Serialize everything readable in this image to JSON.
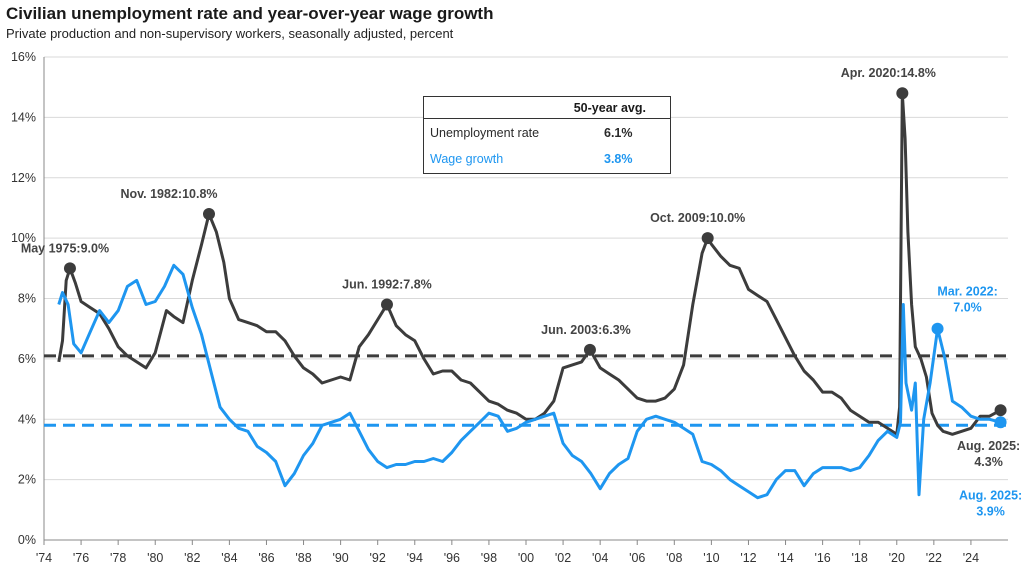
{
  "title": "Civilian unemployment rate and year-over-year wage growth",
  "subtitle": "Private production and non-supervisory workers, seasonally adjusted, percent",
  "legend": {
    "header": "50-year avg.",
    "rows": [
      {
        "label": "Unemployment rate",
        "value": "6.1%",
        "color": "#3c3c3c"
      },
      {
        "label": "Wage growth",
        "value": "3.8%",
        "color": "#1e96f0"
      }
    ]
  },
  "chart_data": {
    "type": "line",
    "title": "Civilian unemployment rate and year-over-year wage growth",
    "xlabel": "",
    "ylabel": "",
    "xlim": [
      1974,
      2026
    ],
    "ylim": [
      0,
      16
    ],
    "x_ticks": [
      "'74",
      "'76",
      "'78",
      "'80",
      "'82",
      "'84",
      "'86",
      "'88",
      "'90",
      "'92",
      "'94",
      "'96",
      "'98",
      "'00",
      "'02",
      "'04",
      "'06",
      "'08",
      "'10",
      "'12",
      "'14",
      "'16",
      "'18",
      "'20",
      "'22",
      "'24"
    ],
    "y_ticks": [
      "0%",
      "2%",
      "4%",
      "6%",
      "8%",
      "10%",
      "12%",
      "14%",
      "16%"
    ],
    "grid": "horizontal",
    "series": [
      {
        "name": "Unemployment rate",
        "color": "#3c3c3c",
        "avg": 6.1,
        "points": [
          [
            1974.8,
            5.9
          ],
          [
            1975.0,
            6.6
          ],
          [
            1975.2,
            8.6
          ],
          [
            1975.4,
            9.0
          ],
          [
            1975.7,
            8.5
          ],
          [
            1976.0,
            7.9
          ],
          [
            1976.5,
            7.7
          ],
          [
            1977.0,
            7.5
          ],
          [
            1977.5,
            7.0
          ],
          [
            1978.0,
            6.4
          ],
          [
            1978.5,
            6.1
          ],
          [
            1979.0,
            5.9
          ],
          [
            1979.5,
            5.7
          ],
          [
            1980.0,
            6.2
          ],
          [
            1980.3,
            6.9
          ],
          [
            1980.6,
            7.6
          ],
          [
            1981.0,
            7.4
          ],
          [
            1981.5,
            7.2
          ],
          [
            1982.0,
            8.6
          ],
          [
            1982.5,
            9.8
          ],
          [
            1982.9,
            10.8
          ],
          [
            1983.3,
            10.2
          ],
          [
            1983.7,
            9.2
          ],
          [
            1984.0,
            8.0
          ],
          [
            1984.5,
            7.3
          ],
          [
            1985.0,
            7.2
          ],
          [
            1985.5,
            7.1
          ],
          [
            1986.0,
            6.9
          ],
          [
            1986.5,
            6.9
          ],
          [
            1987.0,
            6.6
          ],
          [
            1987.5,
            6.1
          ],
          [
            1988.0,
            5.7
          ],
          [
            1988.5,
            5.5
          ],
          [
            1989.0,
            5.2
          ],
          [
            1989.5,
            5.3
          ],
          [
            1990.0,
            5.4
          ],
          [
            1990.5,
            5.3
          ],
          [
            1991.0,
            6.4
          ],
          [
            1991.5,
            6.8
          ],
          [
            1992.0,
            7.3
          ],
          [
            1992.5,
            7.8
          ],
          [
            1993.0,
            7.1
          ],
          [
            1993.5,
            6.8
          ],
          [
            1994.0,
            6.6
          ],
          [
            1994.5,
            6.0
          ],
          [
            1995.0,
            5.5
          ],
          [
            1995.5,
            5.6
          ],
          [
            1996.0,
            5.6
          ],
          [
            1996.5,
            5.3
          ],
          [
            1997.0,
            5.2
          ],
          [
            1997.5,
            4.9
          ],
          [
            1998.0,
            4.6
          ],
          [
            1998.5,
            4.5
          ],
          [
            1999.0,
            4.3
          ],
          [
            1999.5,
            4.2
          ],
          [
            2000.0,
            4.0
          ],
          [
            2000.5,
            4.0
          ],
          [
            2001.0,
            4.2
          ],
          [
            2001.5,
            4.6
          ],
          [
            2002.0,
            5.7
          ],
          [
            2002.5,
            5.8
          ],
          [
            2003.0,
            5.9
          ],
          [
            2003.45,
            6.3
          ],
          [
            2004.0,
            5.7
          ],
          [
            2004.5,
            5.5
          ],
          [
            2005.0,
            5.3
          ],
          [
            2005.5,
            5.0
          ],
          [
            2006.0,
            4.7
          ],
          [
            2006.5,
            4.6
          ],
          [
            2007.0,
            4.6
          ],
          [
            2007.5,
            4.7
          ],
          [
            2008.0,
            5.0
          ],
          [
            2008.5,
            5.8
          ],
          [
            2009.0,
            7.8
          ],
          [
            2009.5,
            9.5
          ],
          [
            2009.8,
            10.0
          ],
          [
            2010.0,
            9.8
          ],
          [
            2010.5,
            9.4
          ],
          [
            2011.0,
            9.1
          ],
          [
            2011.5,
            9.0
          ],
          [
            2012.0,
            8.3
          ],
          [
            2012.5,
            8.1
          ],
          [
            2013.0,
            7.9
          ],
          [
            2013.5,
            7.3
          ],
          [
            2014.0,
            6.7
          ],
          [
            2014.5,
            6.1
          ],
          [
            2015.0,
            5.6
          ],
          [
            2015.5,
            5.3
          ],
          [
            2016.0,
            4.9
          ],
          [
            2016.5,
            4.9
          ],
          [
            2017.0,
            4.7
          ],
          [
            2017.5,
            4.3
          ],
          [
            2018.0,
            4.1
          ],
          [
            2018.5,
            3.9
          ],
          [
            2019.0,
            3.9
          ],
          [
            2019.5,
            3.7
          ],
          [
            2020.0,
            3.5
          ],
          [
            2020.15,
            4.4
          ],
          [
            2020.3,
            14.8
          ],
          [
            2020.45,
            13.3
          ],
          [
            2020.6,
            10.2
          ],
          [
            2020.8,
            7.8
          ],
          [
            2021.0,
            6.4
          ],
          [
            2021.3,
            6.0
          ],
          [
            2021.6,
            5.4
          ],
          [
            2021.9,
            4.2
          ],
          [
            2022.2,
            3.8
          ],
          [
            2022.5,
            3.6
          ],
          [
            2023.0,
            3.5
          ],
          [
            2023.5,
            3.6
          ],
          [
            2024.0,
            3.7
          ],
          [
            2024.5,
            4.1
          ],
          [
            2025.0,
            4.1
          ],
          [
            2025.6,
            4.3
          ]
        ]
      },
      {
        "name": "Wage growth",
        "color": "#1e96f0",
        "avg": 3.8,
        "points": [
          [
            1974.8,
            7.8
          ],
          [
            1975.0,
            8.2
          ],
          [
            1975.3,
            7.8
          ],
          [
            1975.6,
            6.5
          ],
          [
            1976.0,
            6.2
          ],
          [
            1976.5,
            6.9
          ],
          [
            1977.0,
            7.6
          ],
          [
            1977.5,
            7.2
          ],
          [
            1978.0,
            7.6
          ],
          [
            1978.5,
            8.4
          ],
          [
            1979.0,
            8.6
          ],
          [
            1979.5,
            7.8
          ],
          [
            1980.0,
            7.9
          ],
          [
            1980.5,
            8.4
          ],
          [
            1981.0,
            9.1
          ],
          [
            1981.5,
            8.8
          ],
          [
            1982.0,
            7.7
          ],
          [
            1982.5,
            6.8
          ],
          [
            1983.0,
            5.6
          ],
          [
            1983.5,
            4.4
          ],
          [
            1984.0,
            4.0
          ],
          [
            1984.5,
            3.7
          ],
          [
            1985.0,
            3.6
          ],
          [
            1985.5,
            3.1
          ],
          [
            1986.0,
            2.9
          ],
          [
            1986.5,
            2.6
          ],
          [
            1987.0,
            1.8
          ],
          [
            1987.5,
            2.2
          ],
          [
            1988.0,
            2.8
          ],
          [
            1988.5,
            3.2
          ],
          [
            1989.0,
            3.8
          ],
          [
            1989.5,
            3.9
          ],
          [
            1990.0,
            4.0
          ],
          [
            1990.5,
            4.2
          ],
          [
            1991.0,
            3.6
          ],
          [
            1991.5,
            3.0
          ],
          [
            1992.0,
            2.6
          ],
          [
            1992.5,
            2.4
          ],
          [
            1993.0,
            2.5
          ],
          [
            1993.5,
            2.5
          ],
          [
            1994.0,
            2.6
          ],
          [
            1994.5,
            2.6
          ],
          [
            1995.0,
            2.7
          ],
          [
            1995.5,
            2.6
          ],
          [
            1996.0,
            2.9
          ],
          [
            1996.5,
            3.3
          ],
          [
            1997.0,
            3.6
          ],
          [
            1997.5,
            3.9
          ],
          [
            1998.0,
            4.2
          ],
          [
            1998.5,
            4.1
          ],
          [
            1999.0,
            3.6
          ],
          [
            1999.5,
            3.7
          ],
          [
            2000.0,
            3.9
          ],
          [
            2000.5,
            4.0
          ],
          [
            2001.0,
            4.1
          ],
          [
            2001.5,
            4.2
          ],
          [
            2002.0,
            3.2
          ],
          [
            2002.5,
            2.8
          ],
          [
            2003.0,
            2.6
          ],
          [
            2003.5,
            2.2
          ],
          [
            2004.0,
            1.7
          ],
          [
            2004.5,
            2.2
          ],
          [
            2005.0,
            2.5
          ],
          [
            2005.5,
            2.7
          ],
          [
            2006.0,
            3.6
          ],
          [
            2006.5,
            4.0
          ],
          [
            2007.0,
            4.1
          ],
          [
            2007.5,
            4.0
          ],
          [
            2008.0,
            3.9
          ],
          [
            2008.5,
            3.7
          ],
          [
            2009.0,
            3.5
          ],
          [
            2009.5,
            2.6
          ],
          [
            2010.0,
            2.5
          ],
          [
            2010.5,
            2.3
          ],
          [
            2011.0,
            2.0
          ],
          [
            2011.5,
            1.8
          ],
          [
            2012.0,
            1.6
          ],
          [
            2012.5,
            1.4
          ],
          [
            2013.0,
            1.5
          ],
          [
            2013.5,
            2.0
          ],
          [
            2014.0,
            2.3
          ],
          [
            2014.5,
            2.3
          ],
          [
            2015.0,
            1.8
          ],
          [
            2015.5,
            2.2
          ],
          [
            2016.0,
            2.4
          ],
          [
            2016.5,
            2.4
          ],
          [
            2017.0,
            2.4
          ],
          [
            2017.5,
            2.3
          ],
          [
            2018.0,
            2.4
          ],
          [
            2018.5,
            2.8
          ],
          [
            2019.0,
            3.3
          ],
          [
            2019.5,
            3.6
          ],
          [
            2020.0,
            3.4
          ],
          [
            2020.2,
            3.9
          ],
          [
            2020.35,
            7.8
          ],
          [
            2020.5,
            5.2
          ],
          [
            2020.8,
            4.3
          ],
          [
            2021.0,
            5.2
          ],
          [
            2021.2,
            1.5
          ],
          [
            2021.45,
            4.0
          ],
          [
            2021.8,
            5.2
          ],
          [
            2022.2,
            7.0
          ],
          [
            2022.6,
            6.0
          ],
          [
            2023.0,
            4.6
          ],
          [
            2023.5,
            4.4
          ],
          [
            2024.0,
            4.1
          ],
          [
            2024.5,
            4.0
          ],
          [
            2025.0,
            4.0
          ],
          [
            2025.6,
            3.9
          ]
        ]
      }
    ],
    "annotations": [
      {
        "series": 0,
        "x": 1975.4,
        "y": 9.0,
        "label": "May 1975:",
        "value": "9.0%"
      },
      {
        "series": 0,
        "x": 1982.9,
        "y": 10.8,
        "label": "Nov. 1982:",
        "value": "10.8%"
      },
      {
        "series": 0,
        "x": 1992.5,
        "y": 7.8,
        "label": "Jun. 1992:",
        "value": "7.8%"
      },
      {
        "series": 0,
        "x": 2003.45,
        "y": 6.3,
        "label": "Jun. 2003:",
        "value": "6.3%"
      },
      {
        "series": 0,
        "x": 2009.8,
        "y": 10.0,
        "label": "Oct. 2009:",
        "value": "10.0%"
      },
      {
        "series": 0,
        "x": 2020.3,
        "y": 14.8,
        "label": "Apr. 2020:",
        "value": "14.8%"
      },
      {
        "series": 1,
        "x": 2022.2,
        "y": 7.0,
        "label": "Mar. 2022:",
        "value": "7.0%"
      },
      {
        "series": 0,
        "x": 2025.6,
        "y": 4.3,
        "label": "Aug. 2025:",
        "value": "4.3%"
      },
      {
        "series": 1,
        "x": 2025.6,
        "y": 3.9,
        "label": "Aug. 2025:",
        "value": "3.9%"
      }
    ]
  }
}
